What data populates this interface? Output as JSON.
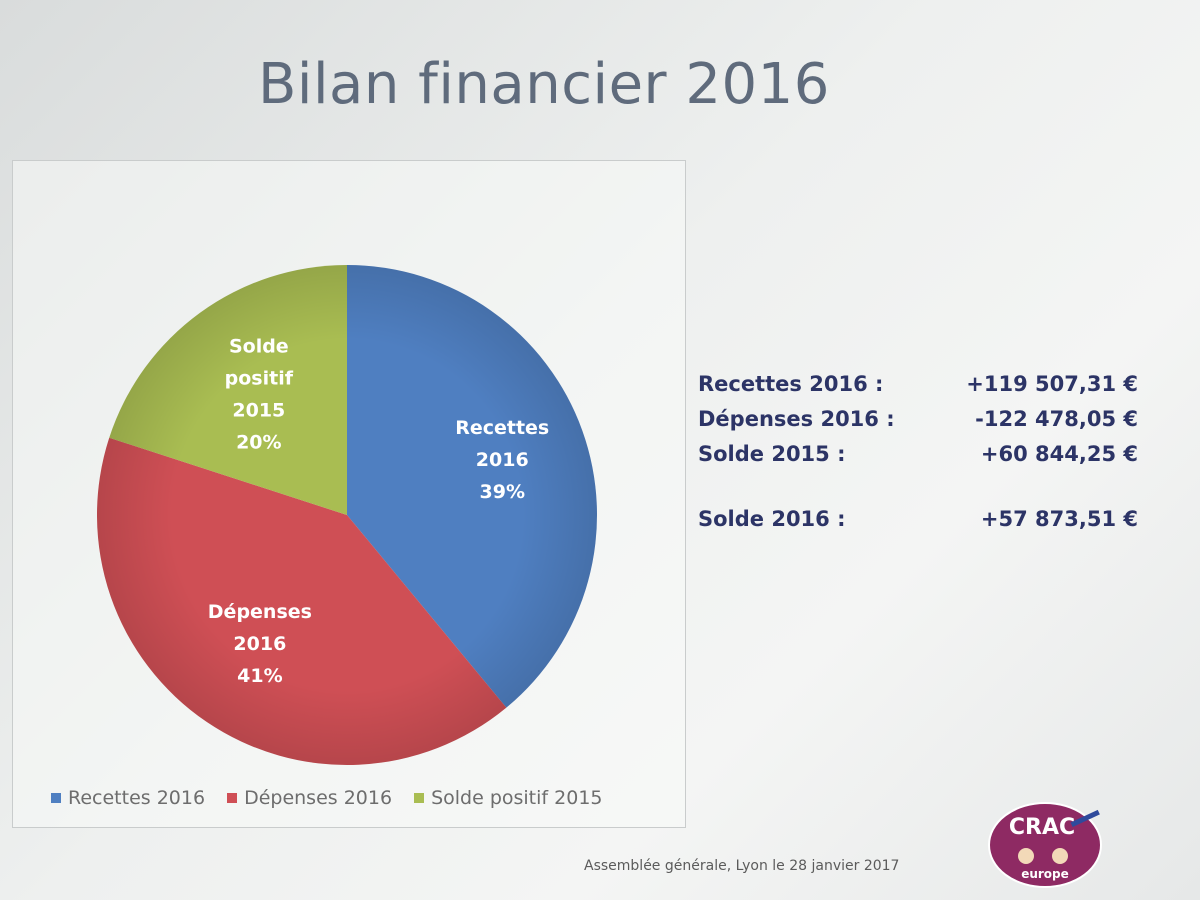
{
  "slide": {
    "title": "Bilan financier 2016",
    "footer": "Assemblée générale, Lyon le 28 janvier 2017"
  },
  "chart_data": {
    "type": "pie",
    "title": "",
    "slices": [
      {
        "name": "Recettes 2016",
        "value": 39,
        "label_lines": [
          "Recettes",
          "2016",
          "39%"
        ],
        "color": "#4f7fc1"
      },
      {
        "name": "Dépenses 2016",
        "value": 41,
        "label_lines": [
          "Dépenses",
          "2016",
          "41%"
        ],
        "color": "#cf4f55"
      },
      {
        "name": "Solde positif 2015",
        "value": 20,
        "label_lines": [
          "Solde",
          "positif",
          "2015",
          "20%"
        ],
        "color": "#a9bd52"
      }
    ],
    "legend_position": "bottom",
    "legend": [
      "Recettes 2016",
      "Dépenses 2016",
      "Solde positif 2015"
    ]
  },
  "summary": {
    "rows": [
      {
        "label": "Recettes 2016 :",
        "value": "+119 507,31 €"
      },
      {
        "label": "Dépenses 2016 :",
        "value": "-122 478,05 €"
      },
      {
        "label": "Solde 2015 :",
        "value": "+60 844,25 €"
      }
    ],
    "total": {
      "label": "Solde 2016 :",
      "value": "+57 873,51 €"
    }
  },
  "logo": {
    "text_top": "CRAC",
    "text_bottom": "europe",
    "color": "#8e2a63"
  }
}
